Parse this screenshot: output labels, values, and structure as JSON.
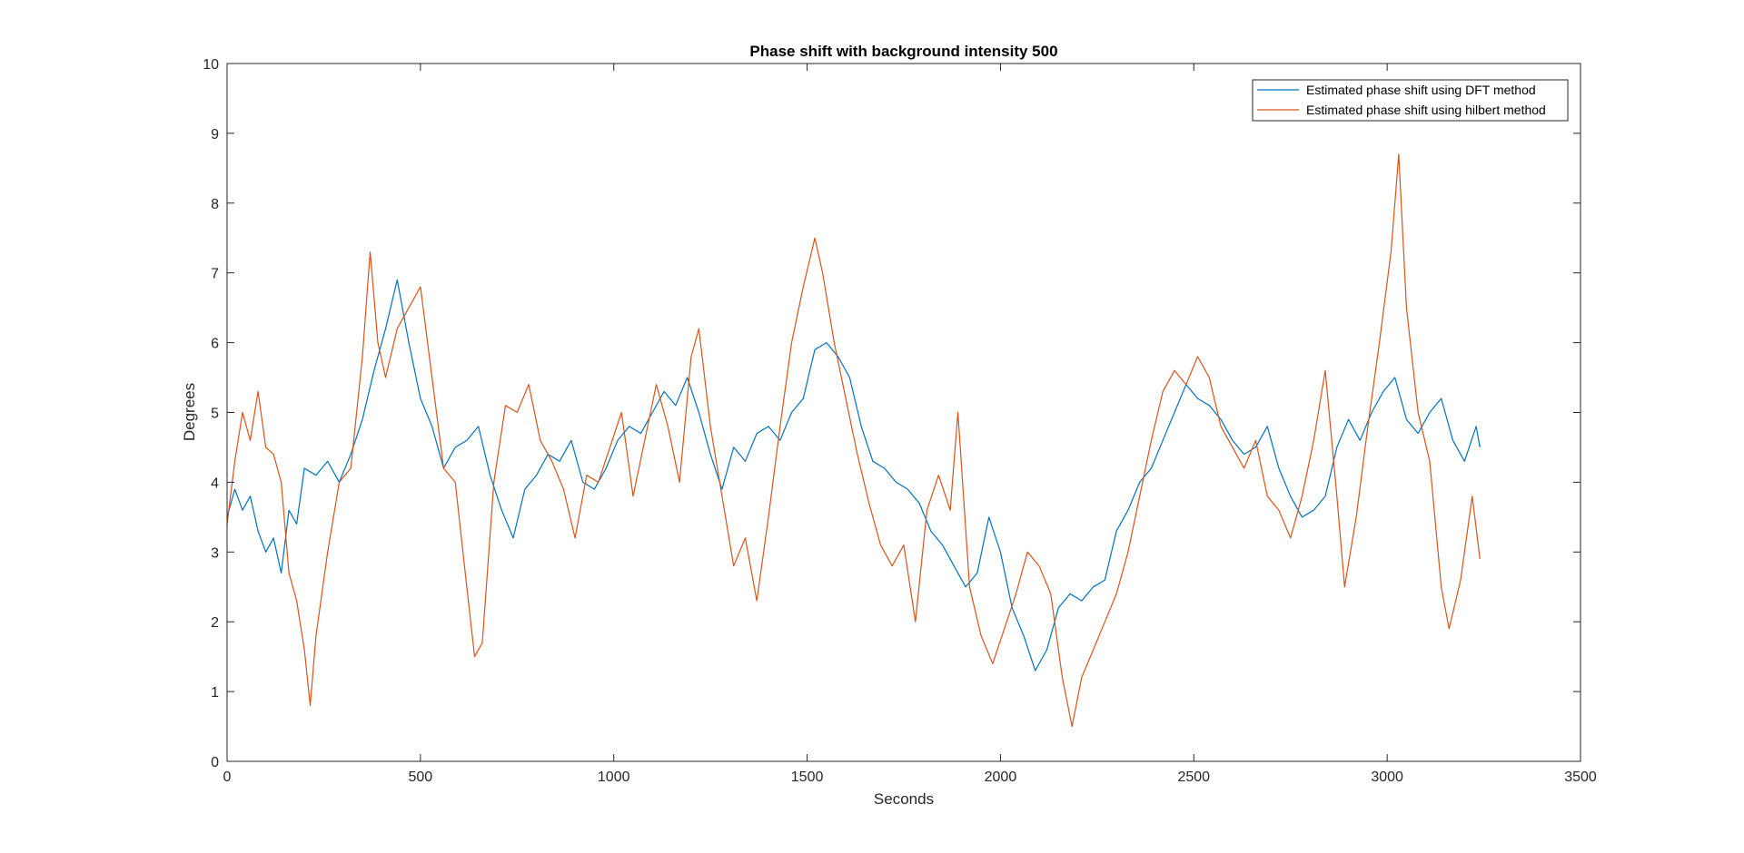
{
  "chart_data": {
    "type": "line",
    "title": "Phase shift with background intensity 500",
    "xlabel": "Seconds",
    "ylabel": "Degrees",
    "xlim": [
      0,
      3500
    ],
    "ylim": [
      0,
      10
    ],
    "xticks": [
      0,
      500,
      1000,
      1500,
      2000,
      2500,
      3000,
      3500
    ],
    "yticks": [
      0,
      1,
      2,
      3,
      4,
      5,
      6,
      7,
      8,
      9,
      10
    ],
    "grid": false,
    "legend_position": "top-right",
    "series": [
      {
        "name": "Estimated phase shift using DFT method",
        "color": "#0072BD",
        "x": [
          0,
          20,
          40,
          60,
          80,
          100,
          120,
          140,
          160,
          180,
          200,
          230,
          260,
          290,
          320,
          350,
          380,
          410,
          440,
          470,
          500,
          530,
          560,
          590,
          620,
          650,
          680,
          710,
          740,
          770,
          800,
          830,
          860,
          890,
          920,
          950,
          980,
          1010,
          1040,
          1070,
          1100,
          1130,
          1160,
          1190,
          1220,
          1250,
          1280,
          1310,
          1340,
          1370,
          1400,
          1430,
          1460,
          1490,
          1520,
          1550,
          1580,
          1610,
          1640,
          1670,
          1700,
          1730,
          1760,
          1790,
          1820,
          1850,
          1880,
          1910,
          1940,
          1970,
          2000,
          2030,
          2060,
          2090,
          2120,
          2150,
          2180,
          2210,
          2240,
          2270,
          2300,
          2330,
          2360,
          2390,
          2420,
          2450,
          2480,
          2510,
          2540,
          2570,
          2600,
          2630,
          2660,
          2690,
          2720,
          2750,
          2780,
          2810,
          2840,
          2870,
          2900,
          2930,
          2960,
          2990,
          3020,
          3050,
          3080,
          3110,
          3140,
          3170,
          3200,
          3230,
          3240
        ],
        "y": [
          3.5,
          3.9,
          3.6,
          3.8,
          3.3,
          3.0,
          3.2,
          2.7,
          3.6,
          3.4,
          4.2,
          4.1,
          4.3,
          4.0,
          4.4,
          4.9,
          5.6,
          6.2,
          6.9,
          6.0,
          5.2,
          4.8,
          4.2,
          4.5,
          4.6,
          4.8,
          4.1,
          3.6,
          3.2,
          3.9,
          4.1,
          4.4,
          4.3,
          4.6,
          4.0,
          3.9,
          4.2,
          4.6,
          4.8,
          4.7,
          5.0,
          5.3,
          5.1,
          5.5,
          5.0,
          4.4,
          3.9,
          4.5,
          4.3,
          4.7,
          4.8,
          4.6,
          5.0,
          5.2,
          5.9,
          6.0,
          5.8,
          5.5,
          4.8,
          4.3,
          4.2,
          4.0,
          3.9,
          3.7,
          3.3,
          3.1,
          2.8,
          2.5,
          2.7,
          3.5,
          3.0,
          2.2,
          1.8,
          1.3,
          1.6,
          2.2,
          2.4,
          2.3,
          2.5,
          2.6,
          3.3,
          3.6,
          4.0,
          4.2,
          4.6,
          5.0,
          5.4,
          5.2,
          5.1,
          4.9,
          4.6,
          4.4,
          4.5,
          4.8,
          4.2,
          3.8,
          3.5,
          3.6,
          3.8,
          4.5,
          4.9,
          4.6,
          5.0,
          5.3,
          5.5,
          4.9,
          4.7,
          5.0,
          5.2,
          4.6,
          4.3,
          4.8,
          4.5
        ]
      },
      {
        "name": "Estimated phase shift using hilbert method",
        "color": "#D95319",
        "x": [
          0,
          20,
          40,
          60,
          80,
          100,
          120,
          140,
          160,
          180,
          200,
          215,
          230,
          260,
          290,
          320,
          350,
          370,
          390,
          410,
          440,
          470,
          500,
          530,
          560,
          590,
          620,
          640,
          660,
          690,
          720,
          750,
          780,
          810,
          840,
          870,
          900,
          930,
          960,
          990,
          1020,
          1050,
          1080,
          1110,
          1140,
          1170,
          1200,
          1220,
          1250,
          1280,
          1310,
          1340,
          1370,
          1400,
          1430,
          1460,
          1490,
          1520,
          1540,
          1570,
          1600,
          1630,
          1660,
          1690,
          1720,
          1750,
          1780,
          1810,
          1840,
          1870,
          1890,
          1920,
          1950,
          1980,
          2010,
          2040,
          2070,
          2100,
          2130,
          2160,
          2185,
          2210,
          2240,
          2270,
          2300,
          2330,
          2360,
          2390,
          2420,
          2450,
          2480,
          2510,
          2540,
          2570,
          2600,
          2630,
          2660,
          2690,
          2720,
          2750,
          2780,
          2810,
          2840,
          2870,
          2890,
          2920,
          2950,
          2980,
          3010,
          3030,
          3050,
          3080,
          3110,
          3140,
          3160,
          3190,
          3220,
          3240
        ],
        "y": [
          3.4,
          4.3,
          5.0,
          4.6,
          5.3,
          4.5,
          4.4,
          4.0,
          2.7,
          2.3,
          1.6,
          0.8,
          1.8,
          3.0,
          4.0,
          4.2,
          5.8,
          7.3,
          6.0,
          5.5,
          6.2,
          6.5,
          6.8,
          5.5,
          4.2,
          4.0,
          2.5,
          1.5,
          1.7,
          4.0,
          5.1,
          5.0,
          5.4,
          4.6,
          4.3,
          3.9,
          3.2,
          4.1,
          4.0,
          4.5,
          5.0,
          3.8,
          4.6,
          5.4,
          4.8,
          4.0,
          5.8,
          6.2,
          4.8,
          3.8,
          2.8,
          3.2,
          2.3,
          3.5,
          4.8,
          6.0,
          6.8,
          7.5,
          7.0,
          6.0,
          5.2,
          4.4,
          3.7,
          3.1,
          2.8,
          3.1,
          2.0,
          3.6,
          4.1,
          3.6,
          5.0,
          2.5,
          1.8,
          1.4,
          1.9,
          2.4,
          3.0,
          2.8,
          2.4,
          1.2,
          0.5,
          1.2,
          1.6,
          2.0,
          2.4,
          3.0,
          3.8,
          4.6,
          5.3,
          5.6,
          5.4,
          5.8,
          5.5,
          4.8,
          4.5,
          4.2,
          4.6,
          3.8,
          3.6,
          3.2,
          3.8,
          4.6,
          5.6,
          3.8,
          2.5,
          3.5,
          4.8,
          6.0,
          7.3,
          8.7,
          6.5,
          5.0,
          4.3,
          2.5,
          1.9,
          2.6,
          3.8,
          2.9
        ]
      }
    ]
  }
}
